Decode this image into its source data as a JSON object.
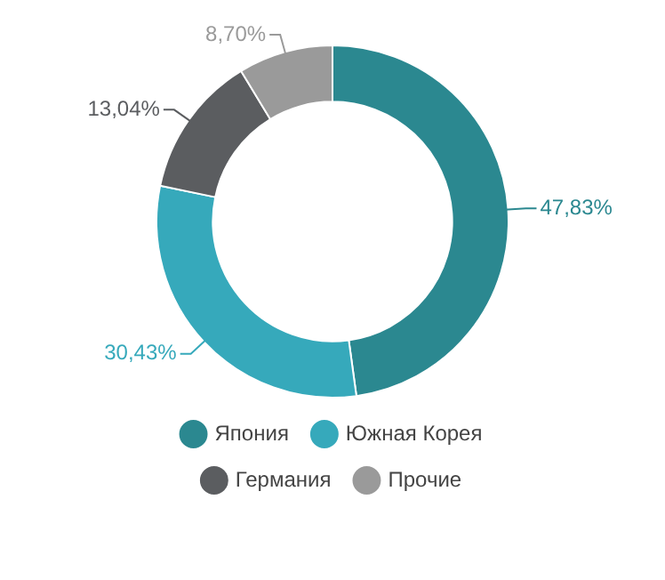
{
  "chart_data": {
    "type": "donut",
    "categories": [
      "Япония",
      "Южная Корея",
      "Германия",
      "Прочие"
    ],
    "values": [
      47.83,
      30.43,
      13.04,
      8.7
    ],
    "value_labels": [
      "47,83%",
      "30,43%",
      "13,04%",
      "8,70%"
    ],
    "colors": [
      "#2b8890",
      "#36a9bb",
      "#5b5d60",
      "#9a9a9a"
    ],
    "legend": "bottom"
  }
}
